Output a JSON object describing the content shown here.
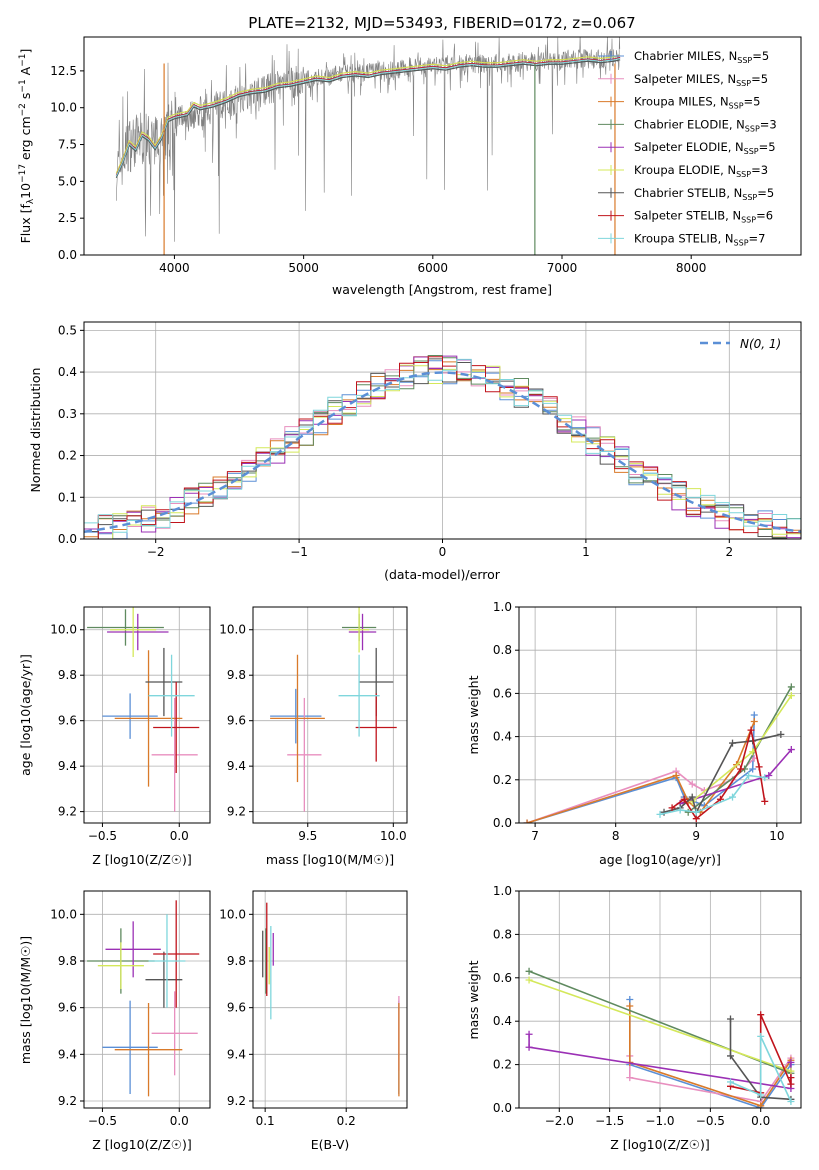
{
  "figure_title": "PLATE=2132, MJD=53493, FIBERID=0172, z=0.067",
  "colors": {
    "grid": "#b0b0b0",
    "spectrum_data": "#808080",
    "normal_curve": "#5b8fd6"
  },
  "series": [
    {
      "name": "Chabrier MILES",
      "nssp": "5",
      "color": "#5b8fd6"
    },
    {
      "name": "Salpeter MILES",
      "nssp": "5",
      "color": "#e88fbf"
    },
    {
      "name": "Kroupa MILES",
      "nssp": "5",
      "color": "#d97a2a"
    },
    {
      "name": "Chabrier ELODIE",
      "nssp": "3",
      "color": "#5f8a5f"
    },
    {
      "name": "Salpeter ELODIE",
      "nssp": "5",
      "color": "#9b30b5"
    },
    {
      "name": "Kroupa ELODIE",
      "nssp": "3",
      "color": "#d4e85a"
    },
    {
      "name": "Chabrier STELIB",
      "nssp": "5",
      "color": "#555555"
    },
    {
      "name": "Salpeter STELIB",
      "nssp": "6",
      "color": "#c0141c"
    },
    {
      "name": "Kroupa STELIB",
      "nssp": "7",
      "color": "#7fd6dc"
    }
  ],
  "chart_data": [
    {
      "id": "spectrum",
      "type": "line",
      "xlabel": "wavelength [Angstrom, rest frame]",
      "ylabel": "Flux [f_λ 10^-17 erg cm^-2 s^-1 A^-1]",
      "xlim": [
        3300,
        8850
      ],
      "ylim": [
        0,
        14.8
      ],
      "xticks": [
        4000,
        5000,
        6000,
        7000,
        8000
      ],
      "yticks": [
        0.0,
        2.5,
        5.0,
        7.5,
        10.0,
        12.5
      ],
      "data_envelope": {
        "x": [
          3550,
          3650,
          3750,
          3850,
          3950,
          4050,
          4150,
          4300,
          4500,
          4700,
          4900,
          5100,
          5300,
          5500,
          5700,
          5900,
          6100,
          6300,
          6500,
          6700,
          6900,
          7100,
          7300,
          7450
        ],
        "y": [
          5.6,
          7.5,
          8.0,
          7.6,
          8.4,
          9.4,
          9.6,
          10.0,
          10.7,
          11.2,
          11.7,
          12.0,
          12.3,
          12.4,
          12.6,
          12.8,
          12.9,
          13.0,
          13.0,
          13.1,
          13.2,
          13.3,
          13.3,
          13.4
        ]
      },
      "model": {
        "x": [
          3550,
          3600,
          3650,
          3700,
          3750,
          3800,
          3850,
          3900,
          3950,
          4000,
          4050,
          4100,
          4150,
          4200,
          4300,
          4400,
          4500,
          4600,
          4700,
          4800,
          4900,
          5000,
          5100,
          5200,
          5300,
          5400,
          5500,
          5600,
          5700,
          5800,
          5900,
          6000,
          6100,
          6200,
          6300,
          6400,
          6500,
          6600,
          6700,
          6800,
          6900,
          7000,
          7100,
          7200,
          7300,
          7400,
          7450
        ],
        "y": [
          5.4,
          6.4,
          7.6,
          7.2,
          8.2,
          7.9,
          7.3,
          8.0,
          9.2,
          9.4,
          9.5,
          9.6,
          10.2,
          10.0,
          10.2,
          10.5,
          10.9,
          11.1,
          11.2,
          11.5,
          11.6,
          11.8,
          12.0,
          11.9,
          12.2,
          12.3,
          12.2,
          12.4,
          12.5,
          12.6,
          12.7,
          12.8,
          12.7,
          12.9,
          13.0,
          12.9,
          12.9,
          13.0,
          13.1,
          13.0,
          13.1,
          13.1,
          13.2,
          13.3,
          13.2,
          13.3,
          13.4
        ]
      }
    },
    {
      "id": "residuals",
      "type": "line",
      "xlabel": "(data-model)/error",
      "ylabel": "Normed distribution",
      "xlim": [
        -2.5,
        2.5
      ],
      "ylim": [
        0,
        0.52
      ],
      "xticks": [
        -2,
        -1,
        0,
        1,
        2
      ],
      "yticks": [
        0.0,
        0.1,
        0.2,
        0.3,
        0.4,
        0.5
      ],
      "normal_label": "N(0, 1)"
    },
    {
      "id": "age_vs_Z",
      "type": "scatter",
      "xlabel": "Z [log10(Z/Z☉)]",
      "ylabel": "age  [log10(age/yr)]",
      "xlim": [
        -0.62,
        0.2
      ],
      "ylim": [
        9.15,
        10.1
      ],
      "xticks": [
        -0.5,
        0.0
      ],
      "yticks": [
        9.2,
        9.4,
        9.6,
        9.8,
        10.0
      ],
      "points": [
        {
          "s": 0,
          "x": -0.32,
          "y": 9.62,
          "xerr": 0.18,
          "yerr": 0.1
        },
        {
          "s": 1,
          "x": -0.03,
          "y": 9.45,
          "xerr": 0.15,
          "yerr": 0.25
        },
        {
          "s": 2,
          "x": -0.2,
          "y": 9.61,
          "xerr": 0.22,
          "yerr": 0.3
        },
        {
          "s": 3,
          "x": -0.35,
          "y": 10.01,
          "xerr": 0.25,
          "yerr": 0.08
        },
        {
          "s": 4,
          "x": -0.27,
          "y": 9.99,
          "xerr": 0.2,
          "yerr": 0.08
        },
        {
          "s": 5,
          "x": -0.3,
          "y": 10.0,
          "xerr": 0.15,
          "yerr": 0.12
        },
        {
          "s": 6,
          "x": -0.1,
          "y": 9.77,
          "xerr": 0.12,
          "yerr": 0.15
        },
        {
          "s": 7,
          "x": -0.02,
          "y": 9.57,
          "xerr": 0.15,
          "yerr": 0.2
        },
        {
          "s": 8,
          "x": -0.05,
          "y": 9.71,
          "xerr": 0.15,
          "yerr": 0.18
        }
      ]
    },
    {
      "id": "age_vs_mass",
      "type": "scatter",
      "xlabel": "mass [log10(M/M☉)]",
      "ylabel": "",
      "xlim": [
        9.18,
        10.08
      ],
      "ylim": [
        9.15,
        10.1
      ],
      "xticks": [
        9.5,
        10.0
      ],
      "yticks": [
        9.2,
        9.4,
        9.6,
        9.8,
        10.0
      ],
      "points": [
        {
          "s": 0,
          "x": 9.43,
          "y": 9.62,
          "xerr": 0.15,
          "yerr": 0.12
        },
        {
          "s": 1,
          "x": 9.48,
          "y": 9.45,
          "xerr": 0.1,
          "yerr": 0.25
        },
        {
          "s": 2,
          "x": 9.44,
          "y": 9.61,
          "xerr": 0.16,
          "yerr": 0.28
        },
        {
          "s": 3,
          "x": 9.8,
          "y": 10.01,
          "xerr": 0.1,
          "yerr": 0.06
        },
        {
          "s": 4,
          "x": 9.82,
          "y": 9.99,
          "xerr": 0.08,
          "yerr": 0.08
        },
        {
          "s": 5,
          "x": 9.8,
          "y": 10.0,
          "xerr": 0.06,
          "yerr": 0.1
        },
        {
          "s": 6,
          "x": 9.9,
          "y": 9.77,
          "xerr": 0.1,
          "yerr": 0.15
        },
        {
          "s": 7,
          "x": 9.9,
          "y": 9.57,
          "xerr": 0.12,
          "yerr": 0.15
        },
        {
          "s": 8,
          "x": 9.8,
          "y": 9.71,
          "xerr": 0.12,
          "yerr": 0.18
        }
      ]
    },
    {
      "id": "massweight_vs_age",
      "type": "line",
      "xlabel": "age  [log10(age/yr)]",
      "ylabel": "mass weight",
      "xlim": [
        6.8,
        10.3
      ],
      "ylim": [
        0,
        1.0
      ],
      "xticks": [
        7,
        8,
        9,
        10
      ],
      "yticks": [
        0.0,
        0.2,
        0.4,
        0.6,
        0.8,
        1.0
      ],
      "lines": [
        {
          "s": 0,
          "x": [
            6.9,
            8.75,
            8.85,
            9.1,
            9.7,
            9.72
          ],
          "y": [
            0.0,
            0.21,
            0.12,
            0.08,
            0.25,
            0.5
          ]
        },
        {
          "s": 1,
          "x": [
            6.9,
            8.75,
            8.95,
            9.1,
            9.45,
            9.72
          ],
          "y": [
            0.0,
            0.24,
            0.18,
            0.15,
            0.2,
            0.3
          ]
        },
        {
          "s": 2,
          "x": [
            6.9,
            8.75,
            8.9,
            9.05,
            9.5,
            9.72
          ],
          "y": [
            0.0,
            0.22,
            0.1,
            0.05,
            0.27,
            0.47
          ]
        },
        {
          "s": 3,
          "x": [
            8.9,
            9.6,
            10.18
          ],
          "y": [
            0.05,
            0.25,
            0.63
          ]
        },
        {
          "s": 4,
          "x": [
            8.8,
            9.9,
            10.18
          ],
          "y": [
            0.09,
            0.22,
            0.34
          ]
        },
        {
          "s": 5,
          "x": [
            8.95,
            9.7,
            10.18
          ],
          "y": [
            0.1,
            0.33,
            0.59
          ]
        },
        {
          "s": 6,
          "x": [
            8.6,
            8.8,
            8.95,
            9.0,
            9.45,
            9.7,
            10.05
          ],
          "y": [
            0.05,
            0.07,
            0.12,
            0.05,
            0.37,
            0.38,
            0.41
          ]
        },
        {
          "s": 7,
          "x": [
            8.7,
            8.85,
            9.0,
            9.3,
            9.55,
            9.68,
            9.78,
            9.85
          ],
          "y": [
            0.07,
            0.11,
            0.02,
            0.11,
            0.25,
            0.43,
            0.26,
            0.1
          ]
        },
        {
          "s": 8,
          "x": [
            8.55,
            8.8,
            9.0,
            9.45,
            9.65,
            9.85
          ],
          "y": [
            0.04,
            0.06,
            0.05,
            0.12,
            0.22,
            0.21
          ]
        }
      ]
    },
    {
      "id": "mass_vs_Z",
      "type": "scatter",
      "xlabel": "Z [log10(Z/Z☉)]",
      "ylabel": "mass [log10(M/M☉)]",
      "xlim": [
        -0.62,
        0.2
      ],
      "ylim": [
        9.17,
        10.1
      ],
      "xticks": [
        -0.5,
        0.0
      ],
      "yticks": [
        9.2,
        9.4,
        9.6,
        9.8,
        10.0
      ],
      "points": [
        {
          "s": 0,
          "x": -0.32,
          "y": 9.43,
          "xerr": 0.18,
          "yerr": 0.2
        },
        {
          "s": 1,
          "x": -0.03,
          "y": 9.49,
          "xerr": 0.15,
          "yerr": 0.18
        },
        {
          "s": 2,
          "x": -0.2,
          "y": 9.42,
          "xerr": 0.22,
          "yerr": 0.2
        },
        {
          "s": 3,
          "x": -0.38,
          "y": 9.8,
          "xerr": 0.22,
          "yerr": 0.14
        },
        {
          "s": 4,
          "x": -0.3,
          "y": 9.85,
          "xerr": 0.18,
          "yerr": 0.12
        },
        {
          "s": 5,
          "x": -0.38,
          "y": 9.78,
          "xerr": 0.15,
          "yerr": 0.1
        },
        {
          "s": 6,
          "x": -0.1,
          "y": 9.72,
          "xerr": 0.12,
          "yerr": 0.12
        },
        {
          "s": 7,
          "x": -0.02,
          "y": 9.83,
          "xerr": 0.15,
          "yerr": 0.23
        },
        {
          "s": 8,
          "x": -0.08,
          "y": 9.8,
          "xerr": 0.12,
          "yerr": 0.2
        }
      ]
    },
    {
      "id": "mass_vs_EBV",
      "type": "scatter",
      "xlabel": "E(B-V)",
      "ylabel": "",
      "xlim": [
        0.085,
        0.275
      ],
      "ylim": [
        9.17,
        10.1
      ],
      "xticks": [
        0.1,
        0.2
      ],
      "yticks": [
        9.2,
        9.4,
        9.6,
        9.8,
        10.0
      ],
      "points": [
        {
          "s": 0,
          "x": 0.265,
          "y": 9.43,
          "xerr": 0.0,
          "yerr": 0.2
        },
        {
          "s": 1,
          "x": 0.265,
          "y": 9.49,
          "xerr": 0.0,
          "yerr": 0.16
        },
        {
          "s": 2,
          "x": 0.265,
          "y": 9.42,
          "xerr": 0.0,
          "yerr": 0.2
        },
        {
          "s": 3,
          "x": 0.101,
          "y": 9.8,
          "xerr": 0.0,
          "yerr": 0.14
        },
        {
          "s": 4,
          "x": 0.11,
          "y": 9.85,
          "xerr": 0.0,
          "yerr": 0.07
        },
        {
          "s": 5,
          "x": 0.105,
          "y": 9.78,
          "xerr": 0.0,
          "yerr": 0.08
        },
        {
          "s": 6,
          "x": 0.097,
          "y": 9.83,
          "xerr": 0.0,
          "yerr": 0.1
        },
        {
          "s": 7,
          "x": 0.102,
          "y": 9.85,
          "xerr": 0.0,
          "yerr": 0.2
        },
        {
          "s": 8,
          "x": 0.107,
          "y": 9.75,
          "xerr": 0.0,
          "yerr": 0.2
        }
      ]
    },
    {
      "id": "massweight_vs_Z",
      "type": "line",
      "xlabel": "Z [log10(Z/Z☉)]",
      "ylabel": "mass weight",
      "xlim": [
        -2.4,
        0.4
      ],
      "ylim": [
        0,
        1.0
      ],
      "xticks": [
        -2.0,
        -1.5,
        -1.0,
        -0.5,
        0.0
      ],
      "yticks": [
        0.0,
        0.2,
        0.4,
        0.6,
        0.8,
        1.0
      ],
      "lines": [
        {
          "s": 0,
          "x": [
            -1.3,
            -1.3,
            0.0,
            0.3
          ],
          "y": [
            0.5,
            0.2,
            0.0,
            0.2
          ]
        },
        {
          "s": 1,
          "x": [
            -1.3,
            -1.3,
            0.0,
            0.3
          ],
          "y": [
            0.24,
            0.14,
            0.03,
            0.23
          ]
        },
        {
          "s": 2,
          "x": [
            -1.3,
            -1.3,
            0.0,
            0.3
          ],
          "y": [
            0.47,
            0.21,
            0.01,
            0.22
          ]
        },
        {
          "s": 3,
          "x": [
            -2.3,
            0.3
          ],
          "y": [
            0.63,
            0.16
          ]
        },
        {
          "s": 4,
          "x": [
            -2.3,
            -2.3,
            0.3,
            0.3
          ],
          "y": [
            0.34,
            0.28,
            0.09,
            0.21
          ]
        },
        {
          "s": 5,
          "x": [
            -2.3,
            0.3
          ],
          "y": [
            0.59,
            0.17
          ]
        },
        {
          "s": 6,
          "x": [
            -0.3,
            -0.3,
            0.0,
            0.3
          ],
          "y": [
            0.41,
            0.24,
            0.05,
            0.04
          ]
        },
        {
          "s": 7,
          "x": [
            -0.3,
            0.0,
            0.0,
            0.3,
            0.3
          ],
          "y": [
            0.1,
            0.07,
            0.43,
            0.11,
            0.14
          ]
        },
        {
          "s": 8,
          "x": [
            -0.3,
            0.0,
            0.0,
            0.3
          ],
          "y": [
            0.12,
            0.06,
            0.33,
            0.03
          ]
        }
      ]
    }
  ]
}
